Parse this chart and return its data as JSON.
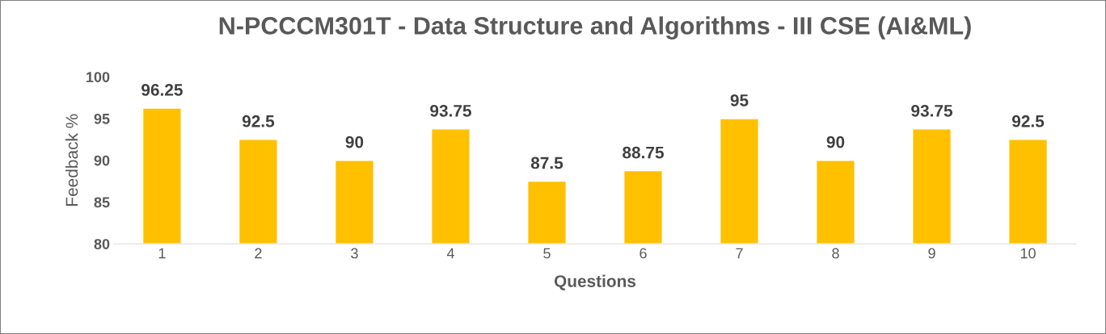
{
  "chart_data": {
    "type": "bar",
    "title": "N-PCCCM301T - Data Structure and Algorithms - III CSE (AI&ML)",
    "xlabel": "Questions",
    "ylabel": "Feedback %",
    "categories": [
      "1",
      "2",
      "3",
      "4",
      "5",
      "6",
      "7",
      "8",
      "9",
      "10"
    ],
    "values": [
      96.25,
      92.5,
      90,
      93.75,
      87.5,
      88.75,
      95,
      90,
      93.75,
      92.5
    ],
    "color": "#ffc000",
    "ylim": [
      80,
      100
    ],
    "yticks": [
      80,
      85,
      90,
      95,
      100
    ],
    "data_labels": true,
    "grid": false,
    "legend": false
  }
}
